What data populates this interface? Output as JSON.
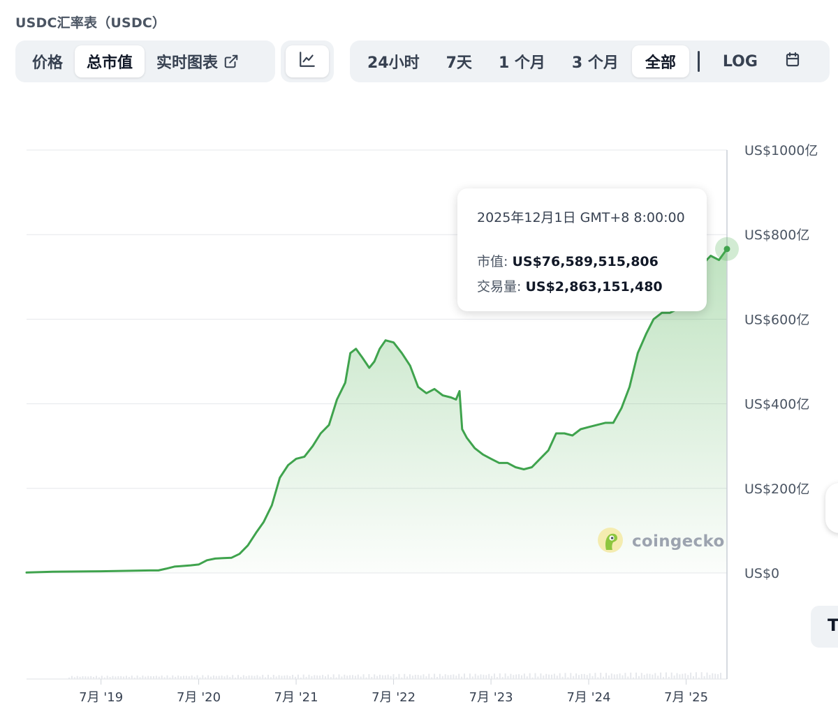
{
  "page": {
    "title": "USDC汇率表（USDC）"
  },
  "tabs": {
    "view": [
      {
        "label": "价格",
        "active": false
      },
      {
        "label": "总市值",
        "active": true
      },
      {
        "label": "实时图表",
        "active": false,
        "icon": "external-link-icon"
      }
    ],
    "chart_type_icon": "line-chart-icon",
    "ranges": [
      {
        "label": "24小时",
        "active": false
      },
      {
        "label": "7天",
        "active": false
      },
      {
        "label": "1 个月",
        "active": false
      },
      {
        "label": "3 个月",
        "active": false
      },
      {
        "label": "全部",
        "active": true
      }
    ],
    "log_label": "LOG",
    "calendar_icon": "calendar-icon"
  },
  "tooltip": {
    "date": "2025年12月1日 GMT+8 8:00:00",
    "market_cap_label": "市值:",
    "market_cap_value": "US$76,589,515,806",
    "volume_label": "交易量:",
    "volume_value": "US$2,863,151,480"
  },
  "watermark": {
    "text": "coingecko"
  },
  "colors": {
    "line": "#3fa34d",
    "fill_top": "#4caf50",
    "grid": "#e5e7eb",
    "volume": "#e6e8ec"
  },
  "chart_data": {
    "type": "area",
    "title": "",
    "xlabel": "",
    "ylabel": "",
    "y_unit": "亿 USD",
    "ylim": [
      0,
      100
    ],
    "grid": true,
    "y_ticks": [
      {
        "value": 100,
        "label": "US$1000亿"
      },
      {
        "value": 80,
        "label": "US$800亿"
      },
      {
        "value": 60,
        "label": "US$600亿"
      },
      {
        "value": 40,
        "label": "US$400亿"
      },
      {
        "value": 20,
        "label": "US$200亿"
      },
      {
        "value": 0,
        "label": "US$0"
      }
    ],
    "x_ticks": [
      {
        "date": "2019-07-01",
        "label": "7月 '19"
      },
      {
        "date": "2020-07-01",
        "label": "7月 '20"
      },
      {
        "date": "2021-07-01",
        "label": "7月 '21"
      },
      {
        "date": "2022-07-01",
        "label": "7月 '22"
      },
      {
        "date": "2023-07-01",
        "label": "7月 '23"
      },
      {
        "date": "2024-07-01",
        "label": "7月 '24"
      },
      {
        "date": "2025-07-01",
        "label": "7月 '25"
      }
    ],
    "x_range": [
      "2018-09-25",
      "2025-12-01"
    ],
    "series": [
      {
        "name": "市值",
        "points": [
          [
            "2018-09-25",
            0.1
          ],
          [
            "2019-01-01",
            0.3
          ],
          [
            "2019-07-01",
            0.4
          ],
          [
            "2020-01-01",
            0.6
          ],
          [
            "2020-02-01",
            0.6
          ],
          [
            "2020-03-01",
            1.0
          ],
          [
            "2020-04-01",
            1.5
          ],
          [
            "2020-06-01",
            1.8
          ],
          [
            "2020-07-01",
            2.0
          ],
          [
            "2020-08-01",
            3.0
          ],
          [
            "2020-09-01",
            3.4
          ],
          [
            "2020-10-01",
            3.5
          ],
          [
            "2020-11-01",
            3.6
          ],
          [
            "2020-12-01",
            4.5
          ],
          [
            "2021-01-01",
            6.5
          ],
          [
            "2021-02-01",
            9.5
          ],
          [
            "2021-03-01",
            12.0
          ],
          [
            "2021-04-01",
            16.0
          ],
          [
            "2021-05-01",
            22.5
          ],
          [
            "2021-06-01",
            25.5
          ],
          [
            "2021-07-01",
            27.0
          ],
          [
            "2021-08-01",
            27.5
          ],
          [
            "2021-09-01",
            30.0
          ],
          [
            "2021-10-01",
            33.0
          ],
          [
            "2021-11-01",
            35.0
          ],
          [
            "2021-12-01",
            41.0
          ],
          [
            "2022-01-01",
            45.0
          ],
          [
            "2022-01-20",
            52.0
          ],
          [
            "2022-02-10",
            53.0
          ],
          [
            "2022-03-05",
            51.0
          ],
          [
            "2022-04-01",
            48.5
          ],
          [
            "2022-04-20",
            50.0
          ],
          [
            "2022-05-10",
            53.0
          ],
          [
            "2022-06-01",
            55.0
          ],
          [
            "2022-07-01",
            54.5
          ],
          [
            "2022-08-01",
            52.0
          ],
          [
            "2022-09-01",
            49.0
          ],
          [
            "2022-10-01",
            44.0
          ],
          [
            "2022-11-01",
            42.5
          ],
          [
            "2022-12-01",
            43.5
          ],
          [
            "2023-01-01",
            42.0
          ],
          [
            "2023-02-01",
            41.5
          ],
          [
            "2023-02-20",
            41.0
          ],
          [
            "2023-03-05",
            43.0
          ],
          [
            "2023-03-15",
            34.0
          ],
          [
            "2023-04-01",
            32.0
          ],
          [
            "2023-05-01",
            29.5
          ],
          [
            "2023-06-01",
            28.0
          ],
          [
            "2023-07-01",
            27.0
          ],
          [
            "2023-08-01",
            26.0
          ],
          [
            "2023-09-01",
            26.0
          ],
          [
            "2023-10-01",
            25.0
          ],
          [
            "2023-11-01",
            24.5
          ],
          [
            "2023-12-01",
            25.0
          ],
          [
            "2024-01-01",
            27.0
          ],
          [
            "2024-02-01",
            29.0
          ],
          [
            "2024-03-01",
            33.0
          ],
          [
            "2024-04-01",
            33.0
          ],
          [
            "2024-05-01",
            32.5
          ],
          [
            "2024-06-01",
            34.0
          ],
          [
            "2024-07-01",
            34.5
          ],
          [
            "2024-08-01",
            35.0
          ],
          [
            "2024-09-01",
            35.5
          ],
          [
            "2024-10-01",
            35.5
          ],
          [
            "2024-11-01",
            39.0
          ],
          [
            "2024-12-01",
            44.0
          ],
          [
            "2025-01-01",
            52.0
          ],
          [
            "2025-02-01",
            56.5
          ],
          [
            "2025-03-01",
            60.0
          ],
          [
            "2025-04-01",
            61.5
          ],
          [
            "2025-05-01",
            61.5
          ],
          [
            "2025-06-01",
            62.5
          ],
          [
            "2025-07-01",
            64.0
          ],
          [
            "2025-08-01",
            68.0
          ],
          [
            "2025-09-01",
            73.0
          ],
          [
            "2025-10-01",
            75.0
          ],
          [
            "2025-11-01",
            74.0
          ],
          [
            "2025-12-01",
            76.6
          ]
        ]
      }
    ]
  }
}
